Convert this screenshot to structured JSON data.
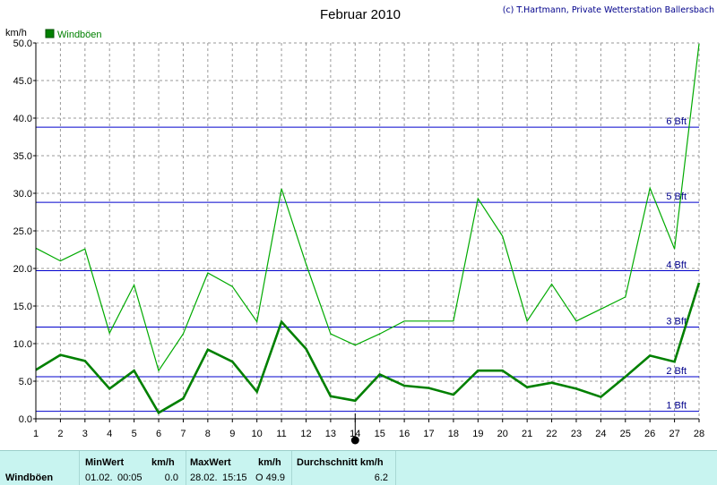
{
  "title": "Februar 2010",
  "credit": "(c) T.Hartmann, Private Wetterstation Ballersbach",
  "colors": {
    "series_thin": "#00aa00",
    "series_thick": "#008000",
    "beaufort_lines": "#0000cc",
    "grid": "#999999",
    "panel_bg": "#c8f4f0"
  },
  "chart_data": {
    "type": "line",
    "title": "Februar 2010",
    "ylabel": "km/h",
    "xlabel": "",
    "ylim": [
      0,
      50
    ],
    "yticks": [
      0.0,
      5.0,
      10.0,
      15.0,
      20.0,
      25.0,
      30.0,
      35.0,
      40.0,
      45.0,
      50.0
    ],
    "ytick_labels": [
      "0.0",
      "5.0",
      "10.0",
      "15.0",
      "20.0",
      "25.0",
      "30.0",
      "35.0",
      "40.0",
      "45.0",
      "50.0"
    ],
    "x": [
      1,
      2,
      3,
      4,
      5,
      6,
      7,
      8,
      9,
      10,
      11,
      12,
      13,
      14,
      15,
      16,
      17,
      18,
      19,
      20,
      21,
      22,
      23,
      24,
      25,
      26,
      27,
      28
    ],
    "x_tick_labels": [
      "1",
      "2",
      "3",
      "4",
      "5",
      "6",
      "7",
      "8",
      "9",
      "10",
      "11",
      "12",
      "13",
      "14",
      "15",
      "16",
      "17",
      "18",
      "19",
      "20",
      "21",
      "22",
      "23",
      "24",
      "25",
      "26",
      "27",
      "28"
    ],
    "grid": true,
    "legend": {
      "position": "top-left",
      "entries": [
        "Windböen"
      ]
    },
    "series": [
      {
        "name": "Windböen",
        "style": "thin",
        "values": [
          22.7,
          21.0,
          22.6,
          11.4,
          17.8,
          6.4,
          11.3,
          19.4,
          17.6,
          12.9,
          30.6,
          20.6,
          11.3,
          9.8,
          11.3,
          13.0,
          13.0,
          13.0,
          29.3,
          24.3,
          13.0,
          17.9,
          13.0,
          14.6,
          16.2,
          30.7,
          22.6,
          49.9
        ]
      },
      {
        "style": "thick",
        "values": [
          6.5,
          8.5,
          7.7,
          4.0,
          6.4,
          0.8,
          2.7,
          9.2,
          7.6,
          3.6,
          12.9,
          9.3,
          3.0,
          2.4,
          5.9,
          4.4,
          4.1,
          3.2,
          6.4,
          6.4,
          4.2,
          4.8,
          4.0,
          2.9,
          5.6,
          8.4,
          7.6,
          18.1
        ]
      }
    ],
    "reference_lines": [
      {
        "label": "1 Bft",
        "value": 1.0
      },
      {
        "label": "2 Bft",
        "value": 5.6
      },
      {
        "label": "3 Bft",
        "value": 12.2
      },
      {
        "label": "4 Bft",
        "value": 19.7
      },
      {
        "label": "5 Bft",
        "value": 28.8
      },
      {
        "label": "6 Bft",
        "value": 38.8
      }
    ],
    "annotations": [
      {
        "x": 14,
        "marker": "current-day"
      }
    ]
  },
  "stats": {
    "row_label": "Windböen",
    "min_header": "MinWert",
    "min_unit_header": "km/h",
    "min_date": "01.02.",
    "min_time": "00:05",
    "min_value": "0.0",
    "max_header": "MaxWert",
    "max_unit_header": "km/h",
    "max_date": "28.02.",
    "max_time": "15:15",
    "max_value": "O 49.9",
    "avg_header": "Durchschnitt km/h",
    "avg_value": "6.2"
  }
}
